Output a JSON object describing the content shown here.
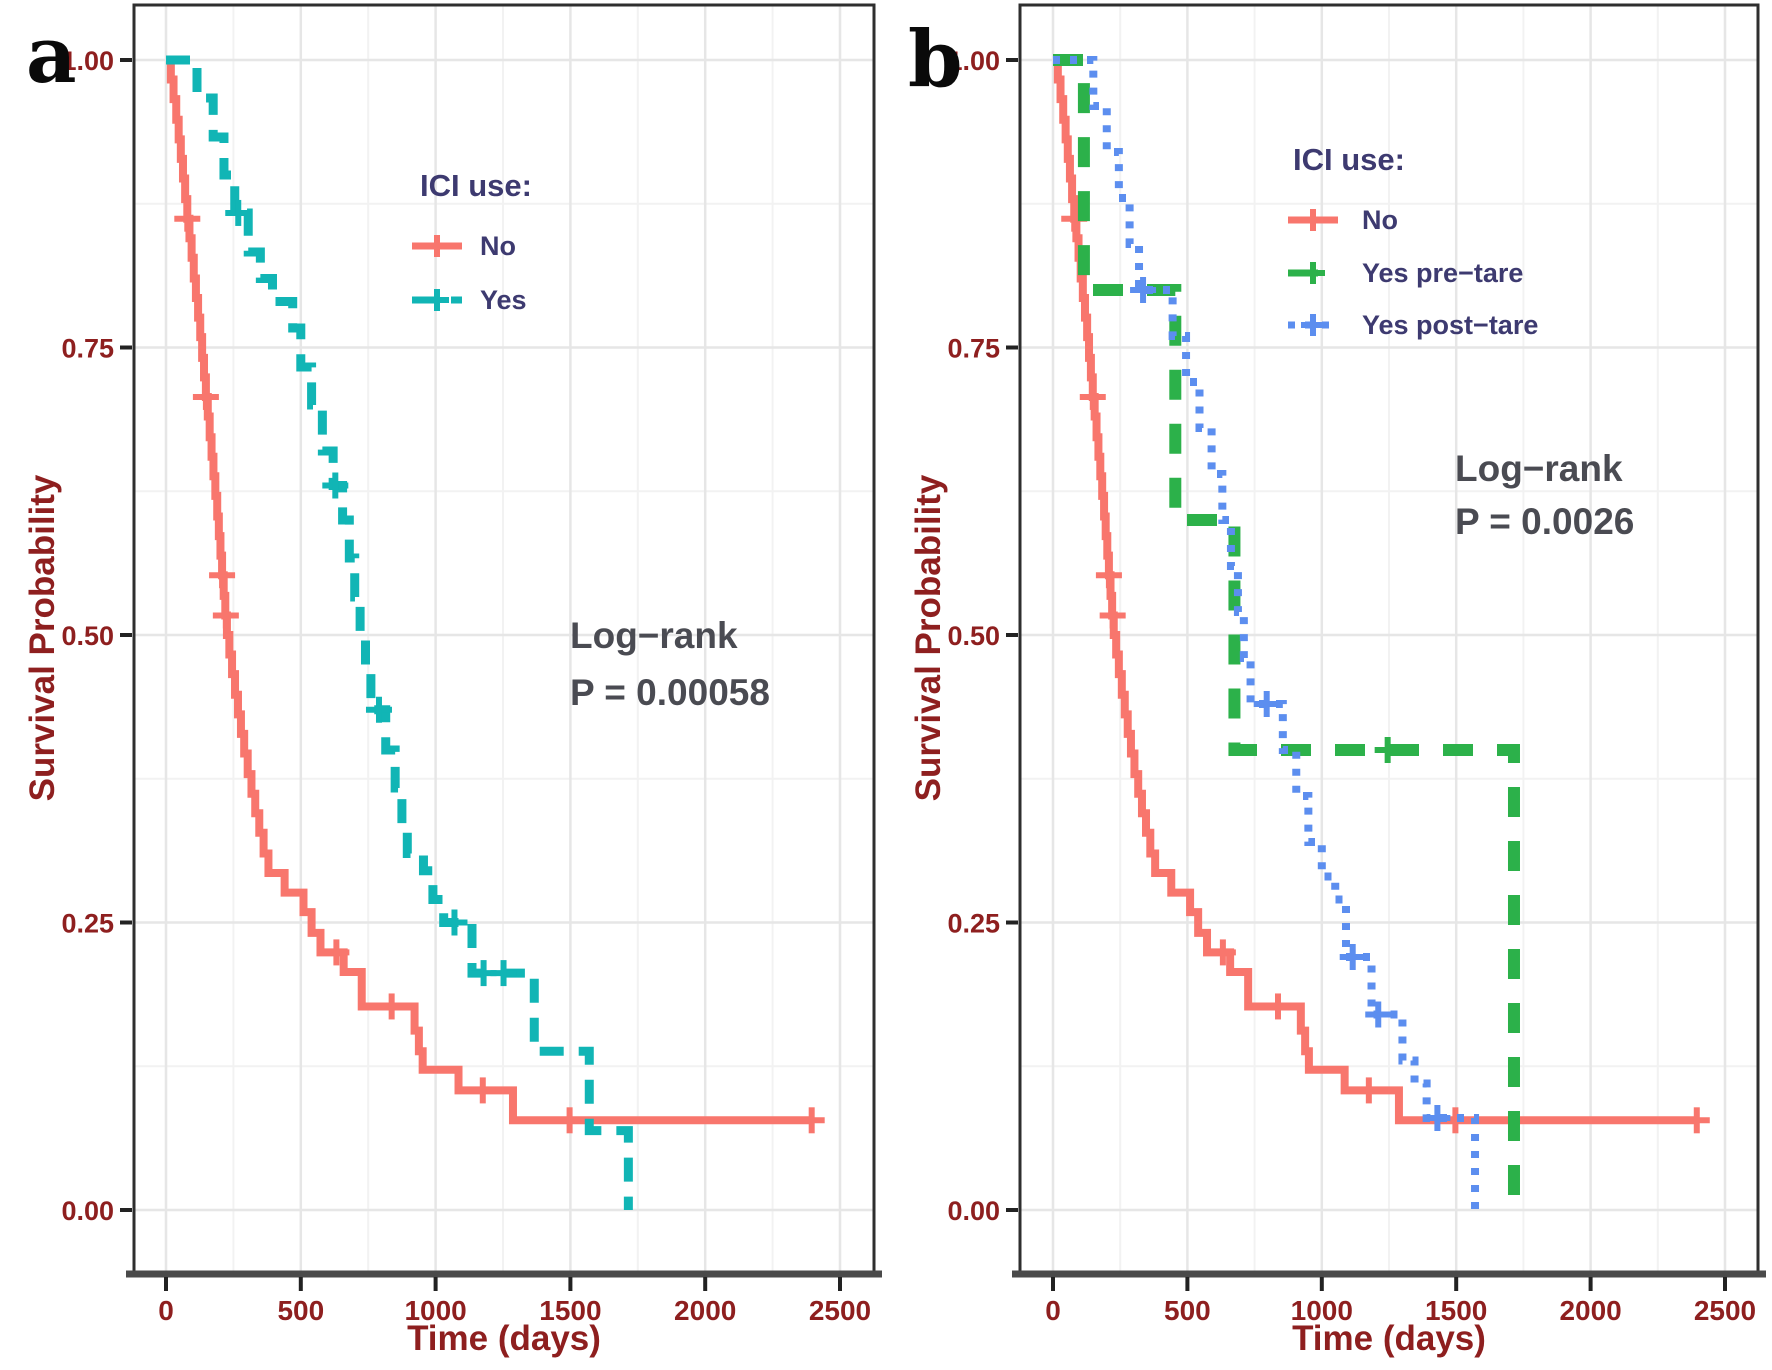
{
  "style": {
    "background": "#FFFFFF",
    "axis_text_color": "#8E1F1F",
    "legend_text_color": "#3D3A70",
    "annotation_text_color": "#4A4B52",
    "grid_major_color": "#E6E6E6",
    "grid_minor_color": "#F2F2F2",
    "panel_border_color": "#2E2E2E",
    "axis_line_color": "#4A4A4A",
    "tick_mark_color": "#222222"
  },
  "chart_data": [
    {
      "type": "line",
      "subtype": "kaplan-meier-step",
      "panel_label": "a",
      "xlabel": "Time (days)",
      "ylabel": "Survival Probability",
      "xlim": [
        0,
        2500
      ],
      "ylim": [
        0,
        1
      ],
      "xticks": [
        0,
        500,
        1000,
        1500,
        2000,
        2500
      ],
      "yticks": [
        "0.00",
        "0.25",
        "0.50",
        "0.75",
        "1.00"
      ],
      "grid": "major and minor gridlines, white panel, dark border",
      "legend_title": "ICI use:",
      "legend_position": "inside top-right",
      "annotation": {
        "line1": "Log−rank",
        "line2": "P = 0.00058"
      },
      "series": [
        {
          "name": "No",
          "color": "#F8766D",
          "dash": "solid",
          "line_width": 8,
          "steps": [
            [
              0,
              1.0
            ],
            [
              18,
              0.983
            ],
            [
              28,
              0.966
            ],
            [
              38,
              0.948
            ],
            [
              47,
              0.931
            ],
            [
              55,
              0.914
            ],
            [
              63,
              0.897
            ],
            [
              71,
              0.879
            ],
            [
              79,
              0.862
            ],
            [
              87,
              0.845
            ],
            [
              95,
              0.828
            ],
            [
              103,
              0.81
            ],
            [
              111,
              0.793
            ],
            [
              119,
              0.776
            ],
            [
              127,
              0.759
            ],
            [
              134,
              0.741
            ],
            [
              141,
              0.724
            ],
            [
              148,
              0.707
            ],
            [
              155,
              0.69
            ],
            [
              162,
              0.672
            ],
            [
              169,
              0.655
            ],
            [
              176,
              0.638
            ],
            [
              183,
              0.621
            ],
            [
              190,
              0.603
            ],
            [
              196,
              0.586
            ],
            [
              202,
              0.569
            ],
            [
              208,
              0.552
            ],
            [
              214,
              0.534
            ],
            [
              220,
              0.517
            ],
            [
              226,
              0.5
            ],
            [
              235,
              0.483
            ],
            [
              245,
              0.466
            ],
            [
              256,
              0.448
            ],
            [
              267,
              0.431
            ],
            [
              278,
              0.414
            ],
            [
              290,
              0.397
            ],
            [
              303,
              0.379
            ],
            [
              317,
              0.362
            ],
            [
              331,
              0.345
            ],
            [
              346,
              0.328
            ],
            [
              362,
              0.31
            ],
            [
              380,
              0.293
            ],
            [
              440,
              0.276
            ],
            [
              510,
              0.259
            ],
            [
              540,
              0.241
            ],
            [
              573,
              0.224
            ],
            [
              659,
              0.207
            ],
            [
              726,
              0.177
            ],
            [
              922,
              0.156
            ],
            [
              938,
              0.138
            ],
            [
              952,
              0.122
            ],
            [
              1085,
              0.104
            ],
            [
              1287,
              0.078
            ],
            [
              2400,
              0.078
            ]
          ],
          "censors": [
            [
              79,
              0.862
            ],
            [
              148,
              0.707
            ],
            [
              208,
              0.552
            ],
            [
              222,
              0.517
            ],
            [
              632,
              0.224
            ],
            [
              837,
              0.177
            ],
            [
              1175,
              0.104
            ],
            [
              1497,
              0.078
            ],
            [
              2395,
              0.078
            ]
          ]
        },
        {
          "name": "Yes",
          "color": "#11B5B5",
          "dash": "dashed",
          "line_width": 9,
          "steps": [
            [
              0,
              1.0
            ],
            [
              115,
              0.967
            ],
            [
              175,
              0.933
            ],
            [
              215,
              0.9
            ],
            [
              255,
              0.867
            ],
            [
              305,
              0.833
            ],
            [
              350,
              0.81
            ],
            [
              395,
              0.79
            ],
            [
              470,
              0.767
            ],
            [
              500,
              0.733
            ],
            [
              540,
              0.7
            ],
            [
              580,
              0.66
            ],
            [
              620,
              0.63
            ],
            [
              655,
              0.6
            ],
            [
              680,
              0.567
            ],
            [
              700,
              0.533
            ],
            [
              720,
              0.5
            ],
            [
              740,
              0.467
            ],
            [
              760,
              0.435
            ],
            [
              815,
              0.4
            ],
            [
              850,
              0.367
            ],
            [
              875,
              0.333
            ],
            [
              895,
              0.31
            ],
            [
              955,
              0.295
            ],
            [
              990,
              0.27
            ],
            [
              1030,
              0.25
            ],
            [
              1135,
              0.206
            ],
            [
              1366,
              0.138
            ],
            [
              1570,
              0.069
            ],
            [
              1715,
              0.0
            ]
          ],
          "censors": [
            [
              268,
              0.867
            ],
            [
              628,
              0.63
            ],
            [
              790,
              0.435
            ],
            [
              1070,
              0.25
            ],
            [
              1178,
              0.206
            ],
            [
              1252,
              0.206
            ]
          ]
        }
      ]
    },
    {
      "type": "line",
      "subtype": "kaplan-meier-step",
      "panel_label": "b",
      "xlabel": "Time (days)",
      "ylabel": "Survival Probability",
      "xlim": [
        0,
        2500
      ],
      "ylim": [
        0,
        1
      ],
      "xticks": [
        0,
        500,
        1000,
        1500,
        2000,
        2500
      ],
      "yticks": [
        "0.00",
        "0.25",
        "0.50",
        "0.75",
        "1.00"
      ],
      "grid": "major and minor gridlines, white panel, dark border",
      "legend_title": "ICI use:",
      "legend_position": "inside top-right",
      "annotation": {
        "line1": "Log−rank",
        "line2": "P = 0.0026"
      },
      "series": [
        {
          "name": "No",
          "color": "#F8766D",
          "dash": "solid",
          "line_width": 8,
          "steps": [
            [
              0,
              1.0
            ],
            [
              18,
              0.983
            ],
            [
              28,
              0.966
            ],
            [
              38,
              0.948
            ],
            [
              47,
              0.931
            ],
            [
              55,
              0.914
            ],
            [
              63,
              0.897
            ],
            [
              71,
              0.879
            ],
            [
              79,
              0.862
            ],
            [
              87,
              0.845
            ],
            [
              95,
              0.828
            ],
            [
              103,
              0.81
            ],
            [
              111,
              0.793
            ],
            [
              119,
              0.776
            ],
            [
              127,
              0.759
            ],
            [
              134,
              0.741
            ],
            [
              141,
              0.724
            ],
            [
              148,
              0.707
            ],
            [
              155,
              0.69
            ],
            [
              162,
              0.672
            ],
            [
              169,
              0.655
            ],
            [
              176,
              0.638
            ],
            [
              183,
              0.621
            ],
            [
              190,
              0.603
            ],
            [
              196,
              0.586
            ],
            [
              202,
              0.569
            ],
            [
              208,
              0.552
            ],
            [
              214,
              0.534
            ],
            [
              220,
              0.517
            ],
            [
              226,
              0.5
            ],
            [
              235,
              0.483
            ],
            [
              245,
              0.466
            ],
            [
              256,
              0.448
            ],
            [
              267,
              0.431
            ],
            [
              278,
              0.414
            ],
            [
              290,
              0.397
            ],
            [
              303,
              0.379
            ],
            [
              317,
              0.362
            ],
            [
              331,
              0.345
            ],
            [
              346,
              0.328
            ],
            [
              362,
              0.31
            ],
            [
              380,
              0.293
            ],
            [
              440,
              0.276
            ],
            [
              510,
              0.259
            ],
            [
              540,
              0.241
            ],
            [
              573,
              0.224
            ],
            [
              659,
              0.207
            ],
            [
              726,
              0.177
            ],
            [
              922,
              0.156
            ],
            [
              938,
              0.138
            ],
            [
              952,
              0.122
            ],
            [
              1085,
              0.104
            ],
            [
              1287,
              0.078
            ],
            [
              2400,
              0.078
            ]
          ],
          "censors": [
            [
              79,
              0.862
            ],
            [
              148,
              0.707
            ],
            [
              208,
              0.552
            ],
            [
              222,
              0.517
            ],
            [
              632,
              0.224
            ],
            [
              837,
              0.177
            ],
            [
              1175,
              0.104
            ],
            [
              1497,
              0.078
            ],
            [
              2395,
              0.078
            ]
          ]
        },
        {
          "name": "Yes pre−tare",
          "color": "#2CB14A",
          "dash": "longdash",
          "line_width": 12,
          "steps": [
            [
              0,
              1.0
            ],
            [
              115,
              0.8
            ],
            [
              455,
              0.6
            ],
            [
              675,
              0.4
            ],
            [
              1715,
              0.0
            ]
          ],
          "censors": [
            [
              1245,
              0.4
            ]
          ]
        },
        {
          "name": "Yes post−tare",
          "color": "#5C8EEF",
          "dash": "dotted",
          "line_width": 8,
          "steps": [
            [
              0,
              1.0
            ],
            [
              150,
              0.96
            ],
            [
              200,
              0.92
            ],
            [
              245,
              0.88
            ],
            [
              285,
              0.84
            ],
            [
              320,
              0.8
            ],
            [
              445,
              0.76
            ],
            [
              495,
              0.72
            ],
            [
              545,
              0.68
            ],
            [
              590,
              0.64
            ],
            [
              630,
              0.6
            ],
            [
              662,
              0.56
            ],
            [
              688,
              0.52
            ],
            [
              710,
              0.48
            ],
            [
              735,
              0.44
            ],
            [
              855,
              0.4
            ],
            [
              905,
              0.36
            ],
            [
              950,
              0.32
            ],
            [
              1000,
              0.29
            ],
            [
              1050,
              0.27
            ],
            [
              1090,
              0.22
            ],
            [
              1185,
              0.17
            ],
            [
              1300,
              0.13
            ],
            [
              1345,
              0.11
            ],
            [
              1390,
              0.08
            ],
            [
              1570,
              0.0
            ]
          ],
          "censors": [
            [
              335,
              0.8
            ],
            [
              795,
              0.44
            ],
            [
              1115,
              0.22
            ],
            [
              1210,
              0.17
            ],
            [
              1430,
              0.08
            ]
          ]
        }
      ]
    }
  ]
}
